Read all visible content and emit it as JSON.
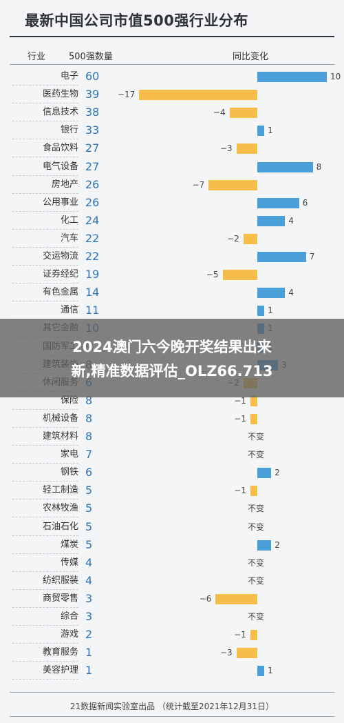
{
  "header": {
    "title": "最新中国公司市值500强行业分布",
    "col_industry": "行业",
    "col_count": "500强数量",
    "col_change": "同比变化"
  },
  "colors": {
    "positive": "#4a9fd8",
    "negative": "#f6bd49",
    "count": "#2a73b8"
  },
  "banner": {
    "line1": "2024澳门六今晚开奖结果出来",
    "line2": "新,精准数据评估_OLZ66.713"
  },
  "footer": "21数据新闻实验室出品 （统计截至2021年12月31日）",
  "no_change_label": "不变",
  "chart_data": {
    "type": "bar",
    "title": "最新中国公司市值500强行业分布",
    "categories": [
      "电子",
      "医药生物",
      "信息技术",
      "银行",
      "食品饮料",
      "电气设备",
      "房地产",
      "公用事业",
      "化工",
      "汽车",
      "交运物流",
      "证券经纪",
      "有色金属",
      "通信",
      "其它金融",
      "国防军工",
      "建筑装饰",
      "休闲服务",
      "保险",
      "机械设备",
      "建筑材料",
      "家电",
      "钢铁",
      "轻工制造",
      "农林牧渔",
      "石油石化",
      "煤炭",
      "传媒",
      "纺织服装",
      "商贸零售",
      "综合",
      "游戏",
      "教育服务",
      "美容护理"
    ],
    "series": [
      {
        "name": "500强数量",
        "values": [
          60,
          39,
          38,
          33,
          27,
          27,
          26,
          26,
          24,
          22,
          22,
          19,
          14,
          11,
          10,
          9,
          8,
          6,
          8,
          8,
          8,
          7,
          6,
          5,
          5,
          5,
          5,
          4,
          4,
          3,
          3,
          2,
          1,
          1
        ]
      },
      {
        "name": "同比变化",
        "values": [
          10,
          -17,
          -4,
          1,
          -3,
          8,
          -7,
          6,
          4,
          -2,
          7,
          -5,
          4,
          1,
          1,
          1,
          3,
          -2,
          -1,
          -1,
          0,
          0,
          2,
          -1,
          0,
          0,
          2,
          0,
          0,
          -6,
          0,
          -1,
          -3,
          1
        ]
      }
    ]
  }
}
